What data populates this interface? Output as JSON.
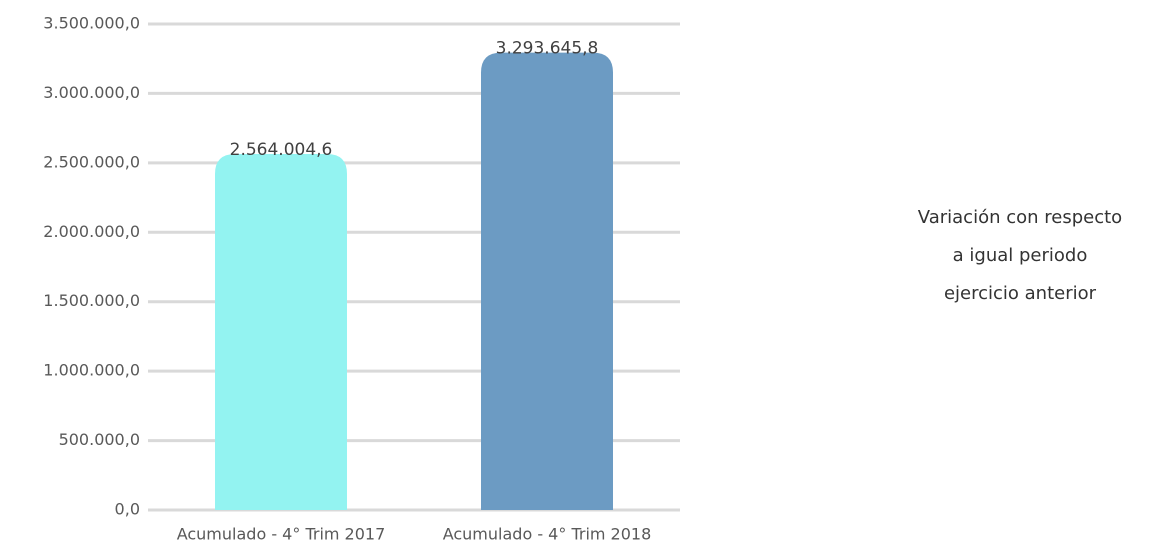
{
  "chart_data": {
    "type": "bar",
    "categories": [
      "Acumulado - 4° Trim 2017",
      "Acumulado - 4° Trim 2018"
    ],
    "values": [
      2564004.6,
      3293645.8
    ],
    "value_labels": [
      "2.564.004,6",
      "3.293.645,8"
    ],
    "colors": [
      "#93f3f1",
      "#6c9bc3"
    ],
    "ylim": [
      0,
      3500000
    ],
    "yticks": [
      {
        "value": 0,
        "label": "0,0"
      },
      {
        "value": 500000,
        "label": "500.000,0"
      },
      {
        "value": 1000000,
        "label": "1.000.000,0"
      },
      {
        "value": 1500000,
        "label": "1.500.000,0"
      },
      {
        "value": 2000000,
        "label": "2.000.000,0"
      },
      {
        "value": 2500000,
        "label": "2.500.000,0"
      },
      {
        "value": 3000000,
        "label": "3.000.000,0"
      },
      {
        "value": 3500000,
        "label": "3.500.000,0"
      }
    ],
    "grid": true,
    "annotation": [
      "Variación con respecto",
      "a igual periodo",
      "ejercicio anterior"
    ]
  }
}
